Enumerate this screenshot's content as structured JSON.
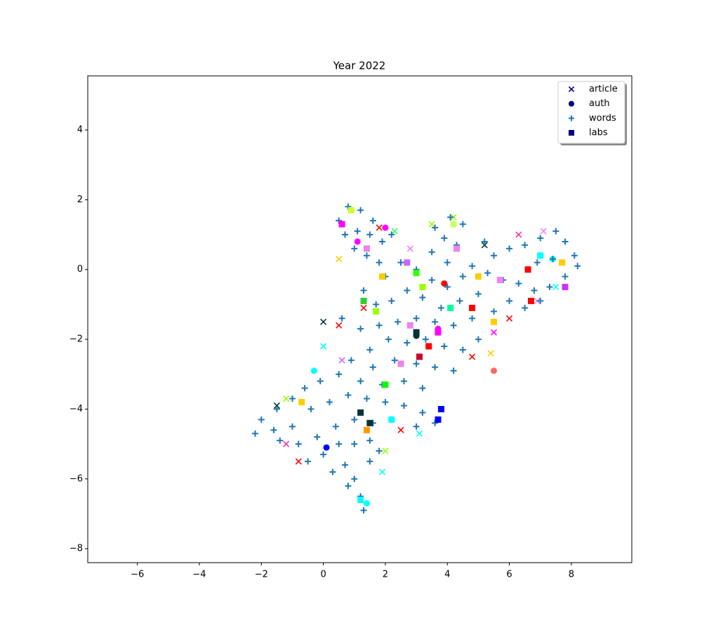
{
  "chart_data": {
    "type": "scatter",
    "title": "Year 2022",
    "xlim": [
      -7.6,
      9.95
    ],
    "ylim": [
      -8.4,
      5.55
    ],
    "xticks": [
      {
        "value": -6,
        "label": "−6"
      },
      {
        "value": -4,
        "label": "−4"
      },
      {
        "value": -2,
        "label": "−2"
      },
      0,
      2,
      4,
      6,
      8
    ],
    "yticks": [
      {
        "value": -8,
        "label": "−8"
      },
      {
        "value": -6,
        "label": "−6"
      },
      {
        "value": -4,
        "label": "−4"
      },
      {
        "value": -2,
        "label": "−2"
      },
      0,
      2,
      4
    ],
    "legend": "upper right",
    "series": [
      {
        "name": "article",
        "marker": "x",
        "color": "#000080",
        "x": [
          0.0,
          0.5,
          1.3,
          -1.5,
          -1.2,
          0.0,
          0.6,
          2.0,
          2.5,
          3.1,
          5.5,
          6.0,
          5.2,
          6.3,
          7.1,
          7.5,
          6.9,
          4.2,
          3.5,
          2.3,
          1.8,
          0.5,
          -0.8,
          -1.2,
          1.9,
          5.4,
          4.8,
          2.8
        ],
        "y": [
          -1.5,
          -1.6,
          -1.1,
          -3.9,
          -3.7,
          -2.2,
          -2.6,
          -5.2,
          -4.6,
          -4.7,
          -1.8,
          -1.4,
          0.7,
          1.0,
          1.1,
          -0.5,
          -0.9,
          1.5,
          1.3,
          1.1,
          1.2,
          0.3,
          -5.5,
          -5.0,
          -5.8,
          -2.4,
          -2.5,
          0.6
        ],
        "colors": [
          "#003333",
          "#ff0000",
          "#ff0000",
          "#003333",
          "#99ff00",
          "#00ffff",
          "#cc66ff",
          "#99ff00",
          "#ff0000",
          "#00ffff",
          "#ff00ff",
          "#ff0000",
          "#003333",
          "#ff3399",
          "#ee82ee",
          "#00ffff",
          "#ee82ee",
          "#99ff00",
          "#99ff00",
          "#33ff66",
          "#ff0000",
          "#ffcc00",
          "#ff0000",
          "#ff3399",
          "#00ffff",
          "#ffcc00",
          "#ff0000",
          "#ee82ee"
        ]
      },
      {
        "name": "auth",
        "marker": "o",
        "color": "#000080",
        "x": [
          -0.3,
          1.4,
          1.1,
          2.0,
          3.0,
          5.5,
          3.7,
          7.4,
          0.1,
          3.9
        ],
        "y": [
          -2.9,
          -6.7,
          0.8,
          1.2,
          -1.9,
          -2.9,
          -1.7,
          0.3,
          -5.1,
          -0.4
        ],
        "colors": [
          "#00ffff",
          "#00ffff",
          "#ff00ff",
          "#ff00ff",
          "#003333",
          "#ff6666",
          "#ff00ff",
          "#00ffff",
          "#0000ff",
          "#ff0000"
        ]
      },
      {
        "name": "words",
        "marker": "+",
        "color": "#1f77b4",
        "x": [
          0.5,
          0.8,
          1.2,
          1.6,
          0.7,
          1.1,
          1.5,
          1.0,
          1.4,
          1.9,
          2.2,
          1.8,
          3.6,
          4.1,
          4.5,
          3.9,
          4.3,
          3.5,
          4.0,
          5.2,
          5.5,
          6.0,
          6.5,
          7.0,
          7.5,
          7.8,
          8.1,
          8.2,
          7.8,
          7.3,
          6.8,
          6.3,
          5.8,
          5.3,
          4.8,
          6.9,
          7.4,
          6.0,
          5.5,
          6.5,
          7.0,
          2.0,
          2.5,
          3.0,
          3.5,
          4.0,
          4.5,
          3.2,
          2.7,
          2.2,
          1.7,
          1.3,
          3.8,
          4.4,
          5.0,
          4.8,
          4.2,
          3.6,
          3.0,
          2.4,
          1.8,
          1.2,
          0.6,
          2.1,
          2.7,
          3.3,
          3.9,
          4.5,
          5.0,
          1.5,
          0.9,
          1.6,
          2.3,
          3.0,
          3.6,
          4.2,
          2.6,
          3.2,
          1.9,
          1.2,
          0.5,
          -0.1,
          -0.6,
          -1.0,
          -1.5,
          -2.0,
          -2.2,
          -1.6,
          -1.0,
          -0.4,
          0.2,
          0.8,
          1.4,
          2.0,
          2.6,
          3.2,
          3.6,
          3.0,
          2.2,
          1.6,
          1.0,
          0.4,
          -0.2,
          -0.8,
          -1.4,
          0.0,
          0.5,
          1.0,
          1.5,
          0.7,
          1.0,
          1.2,
          1.3,
          0.8,
          1.5,
          1.8,
          0.3,
          -0.5
        ],
        "y": [
          1.4,
          1.8,
          1.7,
          1.4,
          1.0,
          1.1,
          1.0,
          0.6,
          0.4,
          0.8,
          1.0,
          0.2,
          1.2,
          1.5,
          1.3,
          0.9,
          0.7,
          0.5,
          0.2,
          0.8,
          0.4,
          0.6,
          0.7,
          0.9,
          1.1,
          0.8,
          0.4,
          0.1,
          -0.2,
          -0.5,
          -0.6,
          -0.4,
          -0.3,
          -0.1,
          0.1,
          0.2,
          0.3,
          -0.9,
          -1.2,
          -1.1,
          -0.9,
          -0.2,
          0.2,
          0.0,
          -0.3,
          -0.5,
          -0.2,
          -0.8,
          -0.6,
          -0.9,
          -1.0,
          -0.6,
          -1.1,
          -0.9,
          -0.7,
          -1.4,
          -1.6,
          -1.5,
          -1.4,
          -1.5,
          -1.6,
          -1.7,
          -1.4,
          -2.0,
          -2.1,
          -2.0,
          -2.2,
          -2.3,
          -2.0,
          -2.3,
          -2.6,
          -2.8,
          -2.6,
          -2.7,
          -2.8,
          -2.9,
          -3.2,
          -3.4,
          -3.3,
          -3.2,
          -3.0,
          -3.2,
          -3.4,
          -3.7,
          -4.0,
          -4.3,
          -4.7,
          -4.6,
          -4.5,
          -4.0,
          -3.8,
          -3.6,
          -3.7,
          -3.8,
          -3.9,
          -4.1,
          -4.4,
          -4.5,
          -4.3,
          -4.4,
          -4.3,
          -4.5,
          -4.8,
          -5.0,
          -4.9,
          -5.3,
          -5.0,
          -5.0,
          -4.9,
          -5.6,
          -6.0,
          -6.5,
          -6.9,
          -6.2,
          -5.5,
          -5.2,
          -5.8,
          -5.5
        ]
      },
      {
        "name": "labs",
        "marker": "s",
        "color": "#000080",
        "x": [
          0.9,
          0.6,
          1.4,
          1.9,
          2.7,
          3.0,
          3.2,
          4.3,
          4.2,
          5.0,
          5.7,
          6.6,
          7.0,
          7.7,
          7.8,
          6.7,
          5.5,
          4.8,
          4.1,
          3.7,
          3.4,
          3.1,
          2.8,
          2.5,
          1.7,
          1.3,
          1.2,
          1.5,
          2.0,
          2.2,
          3.8,
          3.7,
          1.2,
          -0.7,
          1.4,
          3.0
        ],
        "y": [
          1.7,
          1.3,
          0.6,
          -0.2,
          0.2,
          -0.1,
          -0.5,
          0.6,
          1.3,
          -0.2,
          -0.3,
          0.0,
          0.4,
          0.2,
          -0.5,
          -0.9,
          -1.5,
          -1.1,
          -1.1,
          -1.8,
          -2.2,
          -2.5,
          -1.6,
          -2.7,
          -1.2,
          -0.9,
          -4.1,
          -4.4,
          -3.3,
          -4.3,
          -4.0,
          -4.3,
          -6.6,
          -3.8,
          -4.6,
          -1.8
        ],
        "colors": [
          "#ccff33",
          "#ff00ff",
          "#ee82ee",
          "#ffcc00",
          "#cc66ff",
          "#33ff00",
          "#99ff00",
          "#ee82ee",
          "#ccff66",
          "#ffcc00",
          "#ee82ee",
          "#ff0000",
          "#00ffff",
          "#ffcc00",
          "#cc33ff",
          "#ff0000",
          "#ffcc00",
          "#ff0000",
          "#00ff99",
          "#ff00ff",
          "#ff0000",
          "#cc0033",
          "#ee82ee",
          "#ee82ee",
          "#99ff00",
          "#33cc33",
          "#003333",
          "#003333",
          "#00ff00",
          "#00ffff",
          "#0000ff",
          "#0000ff",
          "#00ffff",
          "#ffcc00",
          "#ff9900",
          "#003333"
        ]
      }
    ]
  }
}
